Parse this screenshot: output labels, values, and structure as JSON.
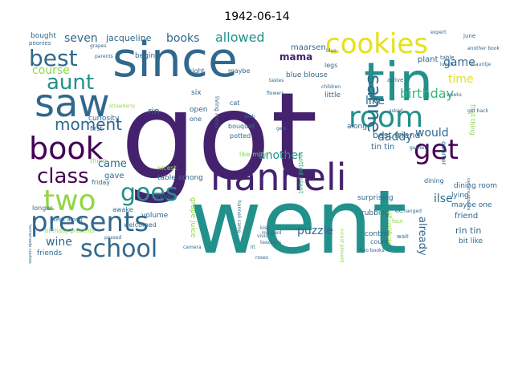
{
  "title": "1942-06-14",
  "colors": {
    "purple": "#44226e",
    "teal": "#22908b",
    "blue": "#30688d",
    "green": "#35b779",
    "lime": "#90d743",
    "yellow": "#e5e119",
    "dark": "#440154"
  },
  "words": [
    {
      "text": "went",
      "color": "teal"
    },
    {
      "text": "got",
      "color": "purple"
    },
    {
      "text": "since",
      "color": "blue"
    },
    {
      "text": "tin",
      "color": "teal"
    },
    {
      "text": "hanneli",
      "color": "purple"
    },
    {
      "text": "saw",
      "color": "blue"
    },
    {
      "text": "cookies",
      "color": "yellow"
    },
    {
      "text": "room",
      "color": "teal"
    },
    {
      "text": "book",
      "color": "dark"
    },
    {
      "text": "get",
      "color": "dark"
    },
    {
      "text": "presents",
      "color": "blue"
    },
    {
      "text": "two",
      "color": "lime"
    },
    {
      "text": "goes",
      "color": "teal"
    },
    {
      "text": "school",
      "color": "blue"
    },
    {
      "text": "aunt",
      "color": "teal"
    },
    {
      "text": "best",
      "color": "blue"
    },
    {
      "text": "class",
      "color": "dark"
    },
    {
      "text": "sanne",
      "color": "blue"
    },
    {
      "text": "moment",
      "color": "blue"
    },
    {
      "text": "seven",
      "color": "blue"
    },
    {
      "text": "books",
      "color": "blue"
    },
    {
      "text": "allowed",
      "color": "teal"
    },
    {
      "text": "game",
      "color": "blue"
    },
    {
      "text": "birthday",
      "color": "green"
    },
    {
      "text": "like",
      "color": "blue"
    },
    {
      "text": "time",
      "color": "yellow"
    },
    {
      "text": "course",
      "color": "lime"
    },
    {
      "text": "daddy",
      "color": "blue"
    },
    {
      "text": "would",
      "color": "blue"
    },
    {
      "text": "puzzle",
      "color": "blue"
    },
    {
      "text": "already",
      "color": "blue"
    },
    {
      "text": "ilse",
      "color": "blue"
    },
    {
      "text": "another",
      "color": "teal"
    },
    {
      "text": "mama",
      "color": "purple"
    },
    {
      "text": "wine",
      "color": "blue"
    },
    {
      "text": "came",
      "color": "blue"
    },
    {
      "text": "jacqueline",
      "color": "blue"
    },
    {
      "text": "maarsen",
      "color": "blue"
    },
    {
      "text": "blue blouse",
      "color": "blue"
    },
    {
      "text": "best friend",
      "color": "blue"
    },
    {
      "text": "tin tin",
      "color": "blue"
    },
    {
      "text": "rin tin",
      "color": "blue"
    },
    {
      "text": "friend",
      "color": "blue"
    },
    {
      "text": "rin",
      "color": "blue"
    },
    {
      "text": "bought",
      "color": "blue"
    },
    {
      "text": "friends",
      "color": "blue"
    },
    {
      "text": "gave",
      "color": "blue"
    },
    {
      "text": "grape juice",
      "color": "lime"
    },
    {
      "text": "first thing",
      "color": "lime"
    },
    {
      "text": "dining room",
      "color": "blue"
    },
    {
      "text": "maybe one",
      "color": "blue"
    },
    {
      "text": "bit like",
      "color": "blue"
    },
    {
      "text": "lying",
      "color": "blue"
    },
    {
      "text": "dining",
      "color": "blue"
    },
    {
      "text": "plant",
      "color": "blue"
    },
    {
      "text": "six",
      "color": "blue"
    },
    {
      "text": "curiosity",
      "color": "blue"
    },
    {
      "text": "begin",
      "color": "blue"
    },
    {
      "text": "table among",
      "color": "blue"
    },
    {
      "text": "living",
      "color": "blue"
    },
    {
      "text": "volume",
      "color": "blue"
    },
    {
      "text": "welcomed",
      "color": "blue"
    },
    {
      "text": "awake",
      "color": "blue"
    },
    {
      "text": "longer",
      "color": "blue"
    },
    {
      "text": "surprising",
      "color": "blue"
    },
    {
      "text": "control",
      "color": "blue"
    },
    {
      "text": "rubbing",
      "color": "blue"
    },
    {
      "text": "count",
      "color": "blue"
    },
    {
      "text": "along",
      "color": "blue"
    },
    {
      "text": "little",
      "color": "blue"
    },
    {
      "text": "maybe",
      "color": "blue"
    },
    {
      "text": "thing",
      "color": "lime"
    },
    {
      "text": "right",
      "color": "blue"
    },
    {
      "text": "open",
      "color": "blue"
    },
    {
      "text": "one",
      "color": "blue"
    },
    {
      "text": "living room",
      "color": "blue"
    },
    {
      "text": "potted plant",
      "color": "green"
    },
    {
      "text": "nicest",
      "color": "lime"
    },
    {
      "text": "first",
      "color": "blue"
    },
    {
      "text": "birthday presents",
      "color": "lime"
    },
    {
      "text": "friday",
      "color": "blue"
    },
    {
      "text": "went along",
      "color": "blue"
    },
    {
      "text": "table",
      "color": "blue"
    },
    {
      "text": "quarter",
      "color": "blue"
    },
    {
      "text": "bouquet",
      "color": "blue"
    },
    {
      "text": "potted",
      "color": "blue"
    },
    {
      "text": "cat",
      "color": "blue"
    },
    {
      "text": "like mine",
      "color": "lime"
    },
    {
      "text": "peonies",
      "color": "blue"
    },
    {
      "text": "expert",
      "color": "blue"
    },
    {
      "text": "june",
      "color": "blue"
    },
    {
      "text": "another book",
      "color": "blue"
    },
    {
      "text": "mauritje",
      "color": "blue"
    },
    {
      "text": "blue",
      "color": "blue"
    },
    {
      "text": "arrive",
      "color": "blue"
    },
    {
      "text": "tastes",
      "color": "blue"
    },
    {
      "text": "legs",
      "color": "blue"
    },
    {
      "text": "strawberry",
      "color": "lime"
    },
    {
      "text": "exchanged",
      "color": "blue"
    },
    {
      "text": "gift certificate",
      "color": "lime"
    },
    {
      "text": "wait",
      "color": "blue"
    },
    {
      "text": "four",
      "color": "lime"
    },
    {
      "text": "roses",
      "color": "blue"
    },
    {
      "text": "teachers",
      "color": "blue"
    },
    {
      "text": "camera",
      "color": "blue"
    },
    {
      "text": "passed",
      "color": "blue"
    },
    {
      "text": "vivid",
      "color": "blue"
    },
    {
      "text": "kiss",
      "color": "blue"
    },
    {
      "text": "two books",
      "color": "blue"
    },
    {
      "text": "hanneli came",
      "color": "blue"
    },
    {
      "text": "nicest present",
      "color": "lime"
    },
    {
      "text": "gets",
      "color": "blue"
    },
    {
      "text": "guilders",
      "color": "blue"
    },
    {
      "text": "wish",
      "color": "blue"
    },
    {
      "text": "camera obscura",
      "color": "blue"
    },
    {
      "text": "lit",
      "color": "blue"
    },
    {
      "text": "homemade cookies",
      "color": "blue"
    },
    {
      "text": "mingled",
      "color": "blue"
    },
    {
      "text": "grapes",
      "color": "blue"
    },
    {
      "text": "lunch",
      "color": "blue"
    },
    {
      "text": "parents",
      "color": "blue"
    },
    {
      "text": "children",
      "color": "blue"
    },
    {
      "text": "weeks",
      "color": "blue"
    },
    {
      "text": "asked",
      "color": "blue"
    },
    {
      "text": "get back",
      "color": "blue"
    },
    {
      "text": "flowers",
      "color": "blue"
    }
  ]
}
